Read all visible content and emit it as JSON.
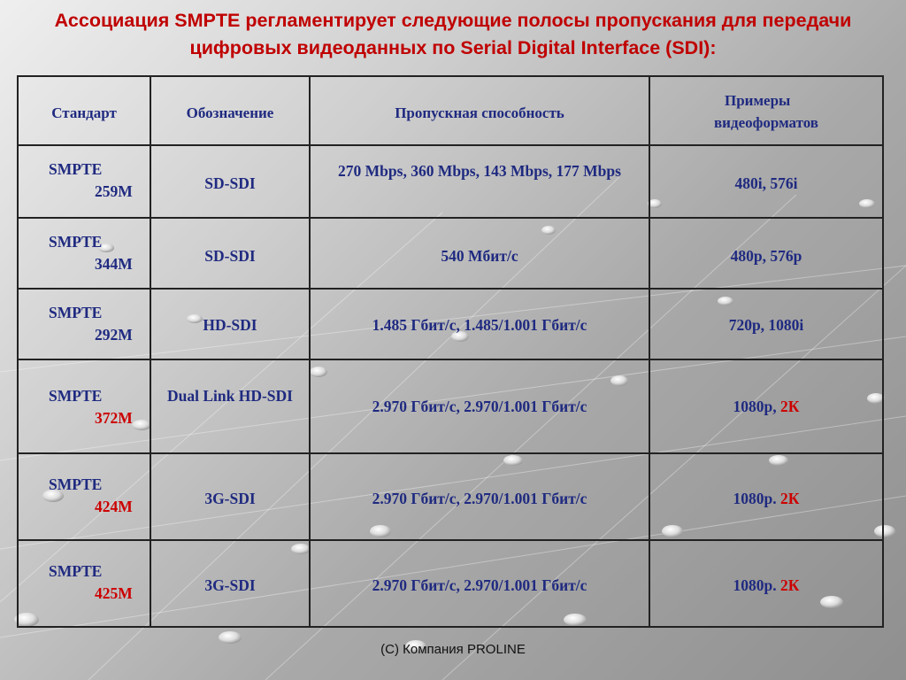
{
  "title": "Ассоциация SMPTE регламентирует следующие полосы пропускания для передачи цифровых видеоданных по Serial Digital Interface (SDI):",
  "table": {
    "headers": {
      "standard": "Стандарт",
      "designation": "Обозначение",
      "bandwidth": "Пропускная способность",
      "formats_line1": "Примеры",
      "formats_line2": "видеоформатов"
    },
    "rows": [
      {
        "std1": "SMPTE",
        "std2": "259M",
        "designation": "SD-SDI",
        "bandwidth": "270 Mbps, 360 Mbps, 143 Mbps, 177 Mbps",
        "formats": "480i, 576i",
        "formats_red": ""
      },
      {
        "std1": "SMPTE",
        "std2": "344M",
        "designation": "SD-SDI",
        "bandwidth": "540 Мбит/с",
        "formats": "480р, 576р",
        "formats_red": ""
      },
      {
        "std1": "SMPTE",
        "std2": "292M",
        "designation": "HD-SDI",
        "bandwidth": "1.485 Гбит/с, 1.485/1.001 Гбит/с",
        "formats": "720р, 1080i",
        "formats_red": ""
      },
      {
        "std1": "SMPTE",
        "std2": "372M",
        "designation": "Dual Link HD-SDI",
        "bandwidth": "2.970 Гбит/с, 2.970/1.001 Гбит/с",
        "formats": "1080р, ",
        "formats_red": "2К"
      },
      {
        "std1": "SMPTE",
        "std2": "424M",
        "designation": "3G-SDI",
        "bandwidth": "2.970 Гбит/с, 2.970/1.001 Гбит/с",
        "formats": "1080р. ",
        "formats_red": "2К"
      },
      {
        "std1": "SMPTE",
        "std2": "425M",
        "designation": "3G-SDI",
        "bandwidth": "2.970 Гбит/с, 2.970/1.001 Гбит/с",
        "formats": "1080р. ",
        "formats_red": "2К"
      }
    ]
  },
  "footer": "(C) Компания PROLINE",
  "colors": {
    "title": "#c00000",
    "cell_text": "#1f2a80",
    "highlight": "#cc0000",
    "border": "#222222"
  }
}
